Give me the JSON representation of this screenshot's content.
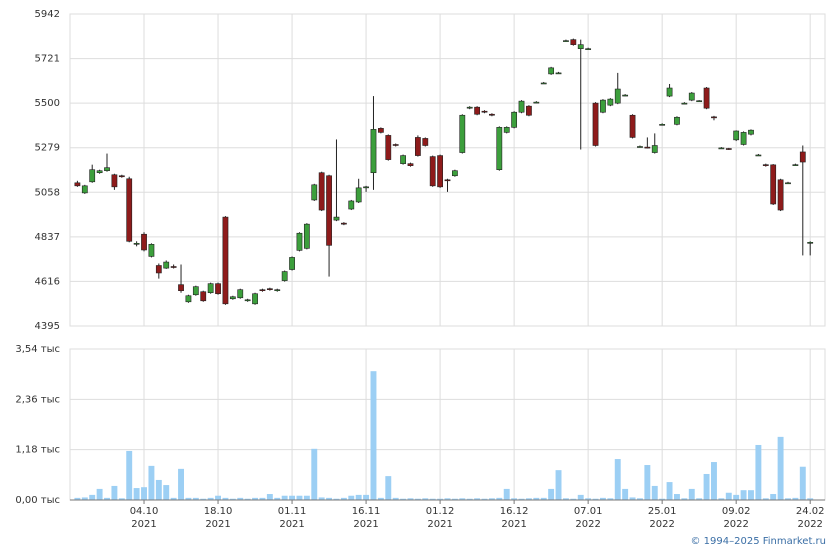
{
  "chart_data": [
    {
      "type": "candlestick",
      "xlim": [
        -1,
        101
      ],
      "ylim": [
        4395,
        5942
      ],
      "yticks": [
        4395,
        4616,
        4837,
        5058,
        5279,
        5500,
        5721,
        5942
      ],
      "grid": true,
      "up_color": "#3c9f3c",
      "down_color": "#8e1b1b",
      "open": [
        5105,
        5055,
        5110,
        5155,
        5165,
        5145,
        5140,
        5125,
        4800,
        4850,
        4740,
        4695,
        4682,
        4690,
        4600,
        4515,
        4550,
        4565,
        4560,
        4605,
        4935,
        4530,
        4535,
        4520,
        4505,
        4575,
        4580,
        4570,
        4620,
        4675,
        4770,
        4780,
        5020,
        5155,
        5140,
        4920,
        4905,
        4975,
        5010,
        5085,
        5155,
        5375,
        5340,
        5295,
        5200,
        5200,
        5330,
        5325,
        5235,
        5240,
        5120,
        5140,
        5255,
        5475,
        5480,
        5460,
        5445,
        5170,
        5355,
        5380,
        5455,
        5485,
        5505,
        5600,
        5645,
        5650,
        5810,
        5815,
        5770,
        5770,
        5500,
        5455,
        5490,
        5500,
        5540,
        5440,
        5285,
        5282,
        5255,
        5395,
        5535,
        5395,
        5500,
        5515,
        5512,
        5575,
        5432,
        5278,
        5275,
        5318,
        5295,
        5346,
        5243,
        5195,
        5194,
        5120,
        5105,
        5195,
        5258,
        4810
      ],
      "high": [
        5115,
        5095,
        5195,
        5170,
        5250,
        5150,
        5145,
        5135,
        4815,
        4860,
        4805,
        4705,
        4720,
        4700,
        4700,
        4550,
        4595,
        4570,
        4610,
        4610,
        4940,
        4545,
        4580,
        4530,
        4560,
        4580,
        4585,
        4580,
        4670,
        4740,
        4860,
        4905,
        5100,
        5160,
        5145,
        5320,
        4910,
        5020,
        5125,
        5090,
        5535,
        5380,
        5345,
        5300,
        5245,
        5205,
        5340,
        5330,
        5240,
        5245,
        5125,
        5170,
        5445,
        5485,
        5485,
        5465,
        5450,
        5385,
        5385,
        5460,
        5515,
        5490,
        5510,
        5605,
        5680,
        5655,
        5815,
        5820,
        5815,
        5775,
        5505,
        5520,
        5525,
        5650,
        5545,
        5445,
        5290,
        5330,
        5350,
        5400,
        5595,
        5435,
        5505,
        5555,
        5515,
        5580,
        5437,
        5282,
        5278,
        5365,
        5360,
        5370,
        5248,
        5200,
        5198,
        5125,
        5110,
        5200,
        5290,
        4815
      ],
      "low": [
        5085,
        5050,
        5105,
        5150,
        5160,
        5070,
        5130,
        4810,
        4790,
        4765,
        4735,
        4630,
        4678,
        4680,
        4560,
        4510,
        4545,
        4515,
        4555,
        4550,
        4500,
        4525,
        4530,
        4515,
        4500,
        4565,
        4570,
        4565,
        4615,
        4670,
        4765,
        4775,
        5015,
        4965,
        4640,
        4915,
        4895,
        4970,
        5005,
        5060,
        5070,
        5350,
        5215,
        5285,
        5195,
        5185,
        5235,
        5285,
        5085,
        5080,
        5060,
        5135,
        5250,
        5470,
        5440,
        5450,
        5435,
        5165,
        5350,
        5375,
        5450,
        5435,
        5500,
        5595,
        5640,
        5645,
        5805,
        5785,
        5270,
        5765,
        5285,
        5450,
        5485,
        5495,
        5535,
        5325,
        5280,
        5275,
        5250,
        5390,
        5530,
        5390,
        5495,
        5510,
        5508,
        5470,
        5415,
        5273,
        5268,
        5312,
        5290,
        5340,
        5238,
        5185,
        4995,
        4965,
        5100,
        5190,
        4745,
        4745
      ],
      "close": [
        5090,
        5090,
        5170,
        5165,
        5180,
        5085,
        5135,
        4815,
        4805,
        4772,
        4800,
        4658,
        4712,
        4685,
        4570,
        4545,
        4590,
        4520,
        4605,
        4555,
        4505,
        4540,
        4575,
        4525,
        4555,
        4570,
        4575,
        4575,
        4665,
        4735,
        4855,
        4900,
        5095,
        4970,
        4795,
        4935,
        4900,
        5015,
        5080,
        5085,
        5370,
        5355,
        5220,
        5290,
        5240,
        5190,
        5240,
        5290,
        5090,
        5085,
        5115,
        5165,
        5440,
        5480,
        5445,
        5455,
        5440,
        5380,
        5380,
        5455,
        5510,
        5440,
        5505,
        5600,
        5675,
        5650,
        5810,
        5790,
        5790,
        5770,
        5290,
        5515,
        5520,
        5570,
        5540,
        5330,
        5285,
        5280,
        5290,
        5395,
        5575,
        5430,
        5500,
        5550,
        5512,
        5475,
        5430,
        5278,
        5272,
        5362,
        5355,
        5366,
        5243,
        5190,
        5000,
        4970,
        5105,
        5195,
        5208,
        4810
      ]
    },
    {
      "type": "bar",
      "xlim": [
        -1,
        101
      ],
      "ylim": [
        0,
        3.54
      ],
      "color": "#9ccff4",
      "grid": true,
      "yticks": [
        {
          "value": 0,
          "label": "0,00 тыс"
        },
        {
          "value": 1.18,
          "label": "1,18 тыс"
        },
        {
          "value": 2.36,
          "label": "2,36 тыс"
        },
        {
          "value": 3.54,
          "label": "3,54 тыс"
        }
      ],
      "xticks": [
        {
          "value": 9,
          "label": "04.10",
          "year": "2021"
        },
        {
          "value": 19,
          "label": "18.10",
          "year": "2021"
        },
        {
          "value": 29,
          "label": "01.11",
          "year": "2021"
        },
        {
          "value": 39,
          "label": "16.11",
          "year": "2021"
        },
        {
          "value": 49,
          "label": "01.12",
          "year": "2021"
        },
        {
          "value": 59,
          "label": "16.12",
          "year": "2021"
        },
        {
          "value": 69,
          "label": "07.01",
          "year": "2022"
        },
        {
          "value": 79,
          "label": "25.01",
          "year": "2022"
        },
        {
          "value": 89,
          "label": "09.02",
          "year": "2022"
        },
        {
          "value": 99,
          "label": "24.02",
          "year": "2022"
        }
      ],
      "values": [
        0.05,
        0.06,
        0.12,
        0.26,
        0.05,
        0.33,
        0.04,
        1.15,
        0.28,
        0.3,
        0.8,
        0.47,
        0.35,
        0.05,
        0.73,
        0.05,
        0.05,
        0.03,
        0.05,
        0.1,
        0.05,
        0.03,
        0.05,
        0.03,
        0.05,
        0.05,
        0.14,
        0.05,
        0.1,
        0.1,
        0.1,
        0.1,
        1.2,
        0.06,
        0.05,
        0.03,
        0.05,
        0.1,
        0.12,
        0.12,
        3.02,
        0.05,
        0.56,
        0.05,
        0.03,
        0.04,
        0.03,
        0.04,
        0.03,
        0.03,
        0.04,
        0.03,
        0.04,
        0.03,
        0.04,
        0.03,
        0.04,
        0.05,
        0.26,
        0.04,
        0.03,
        0.04,
        0.05,
        0.05,
        0.26,
        0.7,
        0.04,
        0.03,
        0.12,
        0.04,
        0.03,
        0.05,
        0.04,
        0.96,
        0.26,
        0.06,
        0.04,
        0.82,
        0.33,
        0.03,
        0.42,
        0.14,
        0.04,
        0.26,
        0.04,
        0.61,
        0.89,
        0.04,
        0.17,
        0.12,
        0.23,
        0.23,
        1.29,
        0.04,
        0.14,
        1.48,
        0.04,
        0.05,
        0.78,
        0.04
      ]
    }
  ],
  "footer": "© 1994–2025 Finmarket.ru"
}
